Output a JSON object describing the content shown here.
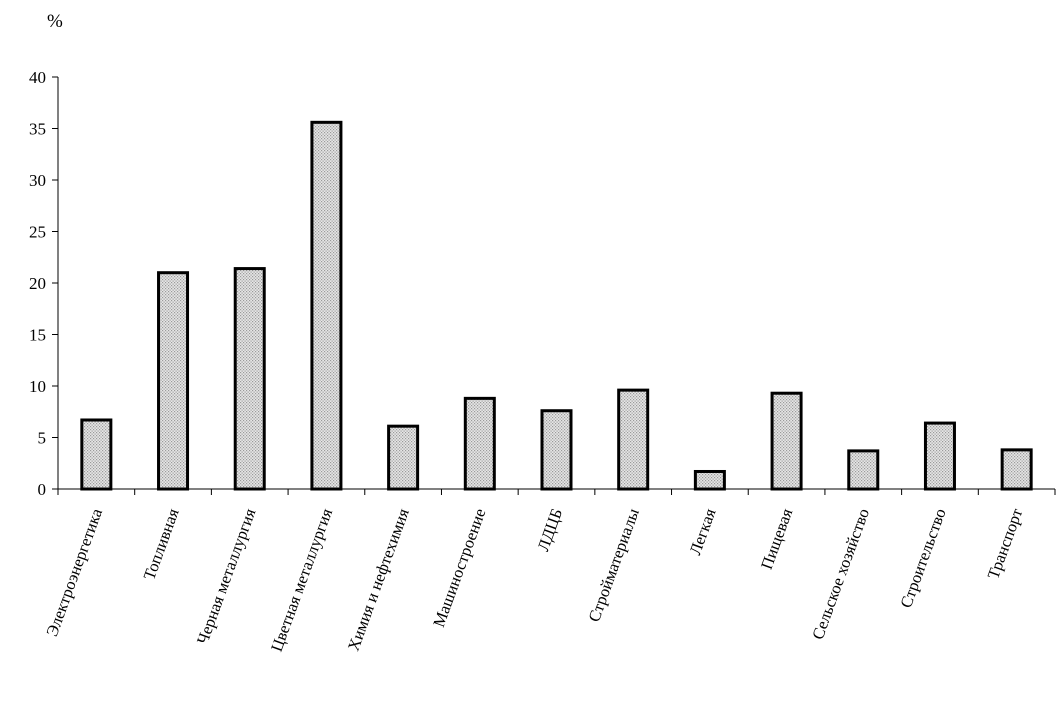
{
  "chart_data": {
    "type": "bar",
    "title": "",
    "xlabel": "",
    "ylabel": "%",
    "ylim": [
      0,
      40
    ],
    "yticks": [
      0,
      5,
      10,
      15,
      20,
      25,
      30,
      35,
      40
    ],
    "grid": false,
    "legend": "none",
    "bar_fill": "#cfcfcf",
    "categories": [
      "Электроэнергетика",
      "Топливная",
      "Черная металлургия",
      "Цветная металлургия",
      "Химия и нефтехимия",
      "Машиностроение",
      "ЛДЦБ",
      "Стройматериалы",
      "Легкая",
      "Пищевая",
      "Сельское хозяйство",
      "Строительство",
      "Транспорт"
    ],
    "values": [
      6.7,
      21.0,
      21.4,
      35.6,
      6.1,
      8.8,
      7.6,
      9.6,
      1.7,
      9.3,
      3.7,
      6.4,
      3.8
    ]
  }
}
